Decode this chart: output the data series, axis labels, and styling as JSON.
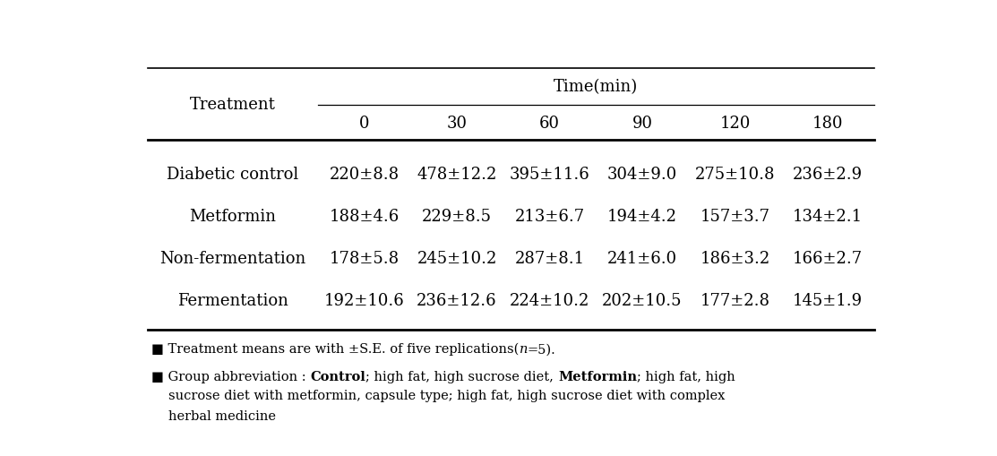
{
  "col_header_top": "Time(min)",
  "col_header_row": [
    "0",
    "30",
    "60",
    "90",
    "120",
    "180"
  ],
  "row_header": "Treatment",
  "rows": [
    {
      "label": "Diabetic control",
      "values": [
        "220±8.8",
        "478±12.2",
        "395±11.6",
        "304±9.0",
        "275±10.8",
        "236±2.9"
      ]
    },
    {
      "label": "Metformin",
      "values": [
        "188±4.6",
        "229±8.5",
        "213±6.7",
        "194±4.2",
        "157±3.7",
        "134±2.1"
      ]
    },
    {
      "label": "Non-fermentation",
      "values": [
        "178±5.8",
        "245±10.2",
        "287±8.1",
        "241±6.0",
        "186±3.2",
        "166±2.7"
      ]
    },
    {
      "label": "Fermentation",
      "values": [
        "192±10.6",
        "236±12.6",
        "224±10.2",
        "202±10.5",
        "177±2.8",
        "145±1.9"
      ]
    }
  ],
  "footnote1": "Treatment means are with ±S.E. of five replications(",
  "footnote1_italic": "n",
  "footnote1_end": "=5).",
  "fn2_pre": "Group abbreviation : ",
  "fn2_bold1": "Control",
  "fn2_mid1": "; high fat, high sucrose diet, ",
  "fn2_bold2": "Metformin",
  "fn2_mid2": "; high fat, high",
  "fn2_line2": "sucrose diet with metformin, capsule type; high fat, high sucrose diet with complex",
  "fn2_line3": "herbal medicine",
  "bg_color": "#ffffff",
  "text_color": "#000000",
  "font_size": 13,
  "footnote_font_size": 10.5
}
